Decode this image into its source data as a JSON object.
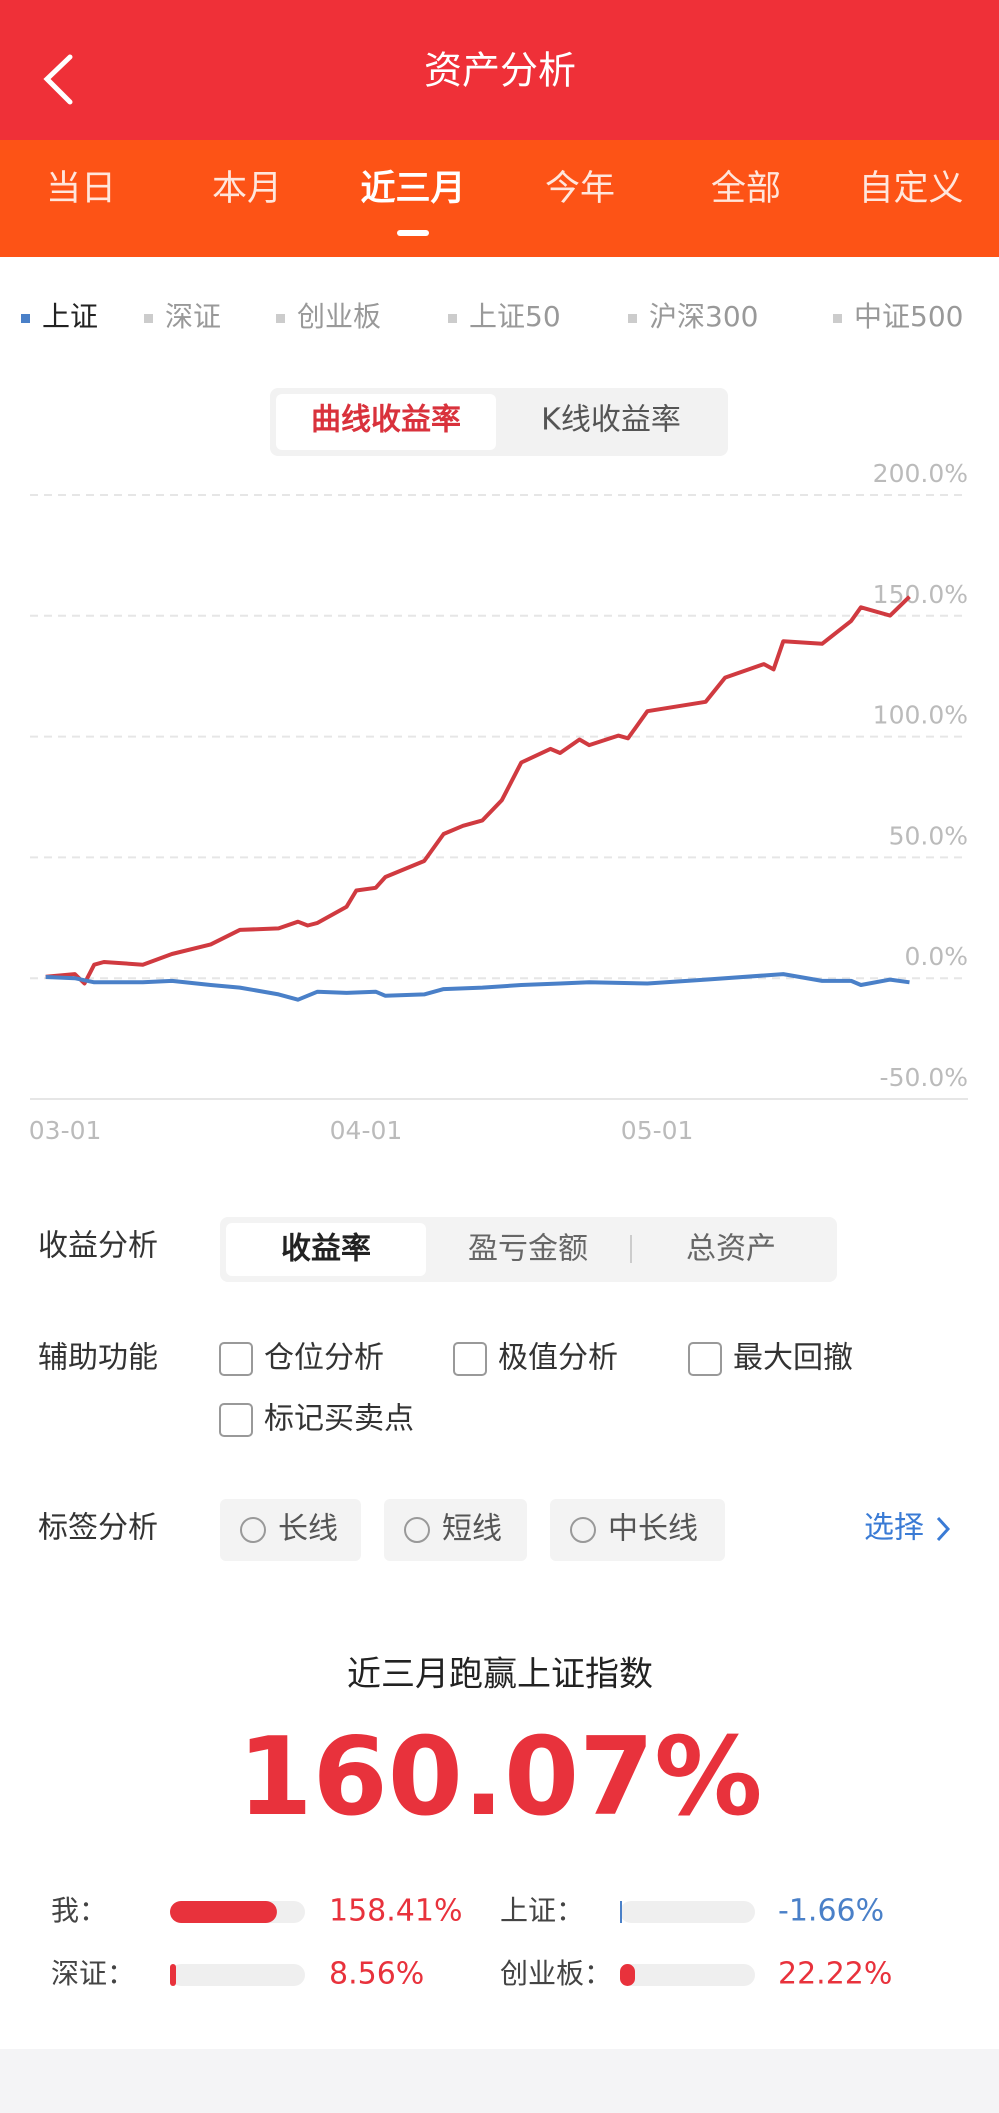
{
  "header": {
    "title": "资产分析"
  },
  "tabs": {
    "items": [
      "当日",
      "本月",
      "近三月",
      "今年",
      "全部",
      "自定义"
    ],
    "active": 2
  },
  "index_tabs": {
    "items": [
      "上证",
      "深证",
      "创业板",
      "上证50",
      "沪深300",
      "中证500"
    ],
    "active": 0
  },
  "chart_toggle": {
    "items": [
      "曲线收益率",
      "K线收益率"
    ],
    "active": 0
  },
  "chart_data": {
    "type": "line",
    "xlim": [
      "02-26",
      "06-01"
    ],
    "xticks": [
      "03-01",
      "04-01",
      "05-01"
    ],
    "ylim": [
      -50,
      200
    ],
    "yticks": [
      {
        "value": -50,
        "label": "-50.0%"
      },
      {
        "value": 0,
        "label": "0.0%"
      },
      {
        "value": 50,
        "label": "50.0%"
      },
      {
        "value": 100,
        "label": "100.0%"
      },
      {
        "value": 150,
        "label": "150.0%"
      },
      {
        "value": 200,
        "label": "200.0%"
      }
    ],
    "grid": true,
    "series": [
      {
        "color": "#d03a40",
        "x": [
          "02-27",
          "03-02",
          "03-03",
          "03-04",
          "03-05",
          "03-09",
          "03-12",
          "03-16",
          "03-19",
          "03-23",
          "03-25",
          "03-26",
          "03-27",
          "03-30",
          "03-31",
          "04-02",
          "04-03",
          "04-07",
          "04-09",
          "04-11",
          "04-13",
          "04-15",
          "04-17",
          "04-20",
          "04-21",
          "04-23",
          "04-24",
          "04-27",
          "04-28",
          "04-30",
          "05-06",
          "05-08",
          "05-12",
          "05-13",
          "05-14",
          "05-18",
          "05-21",
          "05-22",
          "05-25",
          "05-27"
        ],
        "values": [
          0.6,
          1.7,
          -2.2,
          5.6,
          6.7,
          5.6,
          10,
          14,
          20,
          20.6,
          23.4,
          21.8,
          22.9,
          29.6,
          36.3,
          37.4,
          41.9,
          48.5,
          59.7,
          63.1,
          65.3,
          73.7,
          89.3,
          94.9,
          93.2,
          98.8,
          96.5,
          100.4,
          99.3,
          110.5,
          114.4,
          124.4,
          130,
          127.8,
          139.5,
          138.4,
          147.9,
          153.5,
          150.1,
          157.9
        ]
      },
      {
        "color": "#4a80c8",
        "x": [
          "02-27",
          "03-02",
          "03-04",
          "03-09",
          "03-12",
          "03-16",
          "03-19",
          "03-23",
          "03-25",
          "03-27",
          "03-30",
          "04-02",
          "04-03",
          "04-07",
          "04-09",
          "04-13",
          "04-17",
          "04-21",
          "04-24",
          "04-30",
          "05-06",
          "05-12",
          "05-14",
          "05-18",
          "05-21",
          "05-22",
          "05-25",
          "05-27"
        ],
        "values": [
          0.5,
          0,
          -1.7,
          -1.7,
          -1.1,
          -2.8,
          -3.9,
          -6.7,
          -8.9,
          -5.6,
          -6.1,
          -5.6,
          -7.3,
          -6.7,
          -4.5,
          -3.9,
          -2.8,
          -2.2,
          -1.7,
          -2.2,
          -0.6,
          1.1,
          1.7,
          -1.1,
          -1.1,
          -2.8,
          -0.6,
          -1.7
        ]
      }
    ]
  },
  "profit_analysis": {
    "label": "收益分析",
    "options": [
      "收益率",
      "盈亏金额",
      "总资产"
    ],
    "active": 0
  },
  "aux": {
    "label": "辅助功能",
    "options": [
      "仓位分析",
      "极值分析",
      "最大回撤",
      "标记买卖点"
    ]
  },
  "tags": {
    "label": "标签分析",
    "options": [
      "长线",
      "短线",
      "中长线"
    ],
    "action": "选择"
  },
  "summary": {
    "title": "近三月跑赢上证指数",
    "text": "160.07%"
  },
  "comparison": [
    {
      "label": "我：",
      "value": 158.41,
      "value_label": "158.41%"
    },
    {
      "label": "上证：",
      "value": -1.66,
      "value_label": "-1.66%"
    },
    {
      "label": "深证：",
      "value": 8.56,
      "value_label": "8.56%"
    },
    {
      "label": "创业板：",
      "value": 22.22,
      "value_label": "22.22%"
    }
  ]
}
